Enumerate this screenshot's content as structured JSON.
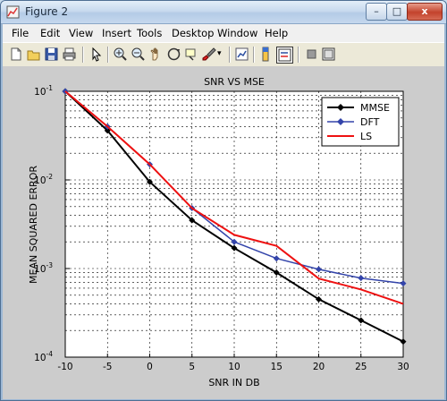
{
  "window": {
    "title": "Figure 2",
    "minimize_label": "–",
    "maximize_label": "□",
    "close_label": "x"
  },
  "menubar": {
    "items": [
      "File",
      "Edit",
      "View",
      "Insert",
      "Tools",
      "Desktop",
      "Window",
      "Help"
    ]
  },
  "toolbar": {
    "icons": [
      "new-figure-icon",
      "open-file-icon",
      "save-icon",
      "print-icon",
      "select-arrow-icon",
      "zoom-in-icon",
      "zoom-out-icon",
      "pan-hand-icon",
      "rotate-3d-icon",
      "data-cursor-icon",
      "brush-icon",
      "link-plot-icon",
      "colorbar-icon",
      "legend-icon",
      "hide-plot-tools-icon",
      "show-plot-tools-icon"
    ]
  },
  "chart_data": {
    "type": "line",
    "title": "SNR VS MSE",
    "xlabel": "SNR IN DB",
    "ylabel": "MEAN SQUARED ERROR",
    "x": [
      -10,
      -5,
      0,
      5,
      10,
      15,
      20,
      25,
      30
    ],
    "xlim": [
      -10,
      30
    ],
    "ylim": [
      0.0001,
      0.1
    ],
    "yscale": "log",
    "xticks": [
      "-10",
      "-5",
      "0",
      "5",
      "10",
      "15",
      "20",
      "25",
      "30"
    ],
    "yticks": [
      {
        "base": "10",
        "exp": "-1",
        "value": 0.1
      },
      {
        "base": "10",
        "exp": "-2",
        "value": 0.01
      },
      {
        "base": "10",
        "exp": "-3",
        "value": 0.001
      },
      {
        "base": "10",
        "exp": "-4",
        "value": 0.0001
      }
    ],
    "grid": true,
    "legend_position": "top-right",
    "series": [
      {
        "name": "MMSE",
        "color": "#000000",
        "marker": "diamond",
        "values": [
          0.1,
          0.036,
          0.0095,
          0.0035,
          0.0017,
          0.0009,
          0.00045,
          0.00026,
          0.00015
        ]
      },
      {
        "name": "DFT",
        "color": "#3344aa",
        "marker": "diamond",
        "values": [
          0.1,
          0.04,
          0.015,
          0.0048,
          0.002,
          0.0013,
          0.00098,
          0.00078,
          0.00068
        ]
      },
      {
        "name": "LS",
        "color": "#ee1111",
        "marker": "none",
        "values": [
          0.1,
          0.04,
          0.015,
          0.0048,
          0.0024,
          0.0018,
          0.00077,
          0.00058,
          0.0004
        ]
      }
    ]
  }
}
